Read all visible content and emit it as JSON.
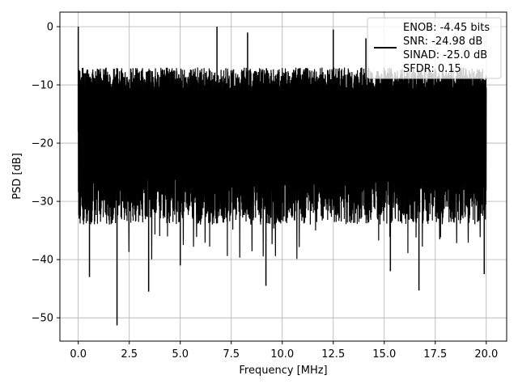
{
  "chart_data": {
    "type": "line",
    "xlabel": "Frequency [MHz]",
    "ylabel": "PSD [dB]",
    "xlim": [
      -0.9,
      21.0
    ],
    "ylim": [
      -54,
      2.5
    ],
    "xticks": [
      0.0,
      2.5,
      5.0,
      7.5,
      10.0,
      12.5,
      15.0,
      17.5,
      20.0
    ],
    "xtick_labels": [
      "0.0",
      "2.5",
      "5.0",
      "7.5",
      "10.0",
      "12.5",
      "15.0",
      "17.5",
      "20.0"
    ],
    "yticks": [
      0,
      -10,
      -20,
      -30,
      -40,
      -50
    ],
    "ytick_labels": [
      "0",
      "−10",
      "−20",
      "−30",
      "−40",
      "−50"
    ],
    "grid": true,
    "legend_position": "upper-right",
    "legend_lines": [
      "ENOB: -4.45 bits",
      "SNR: -24.98 dB",
      "SINAD: -25.0 dB",
      "SFDR: 0.15"
    ],
    "line_color": "#000000",
    "series": [
      {
        "x_start": 0.0,
        "x_end": 20.0,
        "values_description_free": true,
        "peaks": [
          {
            "x": 0.0,
            "y": 0.0
          },
          {
            "x": 6.8,
            "y": 0.0
          },
          {
            "x": 12.5,
            "y": -0.5
          },
          {
            "x": 8.3,
            "y": -1.0
          },
          {
            "x": 14.1,
            "y": -2.0
          }
        ],
        "troughs": [
          {
            "x": 0.55,
            "y": -43.0
          },
          {
            "x": 1.9,
            "y": -51.3
          },
          {
            "x": 3.45,
            "y": -45.5
          },
          {
            "x": 5.0,
            "y": -41.0
          },
          {
            "x": 9.2,
            "y": -44.5
          },
          {
            "x": 15.3,
            "y": -42.0
          },
          {
            "x": 16.7,
            "y": -45.3
          },
          {
            "x": 19.9,
            "y": -42.5
          }
        ],
        "upper_level": -7,
        "lower_level": -26
      }
    ]
  }
}
